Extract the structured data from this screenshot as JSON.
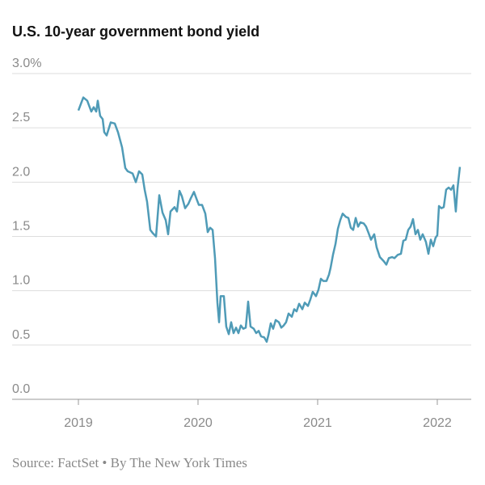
{
  "chart_data": {
    "type": "line",
    "title": "U.S. 10-year government bond yield",
    "source": "Source: FactSet • By The New York Times",
    "color": "#4f9bb7",
    "grid": true,
    "xlim": [
      2018.446,
      2022.284
    ],
    "xticks": [
      2019,
      2020,
      2021,
      2022
    ],
    "ylim": [
      0,
      3
    ],
    "yticks": [
      {
        "value": 0,
        "label": "0.0"
      },
      0.5,
      {
        "value": 1,
        "label": "1.0"
      },
      1.5,
      {
        "value": 2,
        "label": "2.0"
      },
      2.5,
      {
        "value": 3,
        "label": "3.0%"
      }
    ],
    "x": [
      2019.0,
      2019.041,
      2019.074,
      2019.108,
      2019.128,
      2019.149,
      2019.162,
      2019.182,
      2019.203,
      2019.216,
      2019.236,
      2019.27,
      2019.304,
      2019.331,
      2019.365,
      2019.392,
      2019.412,
      2019.453,
      2019.48,
      2019.507,
      2019.534,
      2019.554,
      2019.574,
      2019.601,
      2019.622,
      2019.649,
      2019.676,
      2019.703,
      2019.73,
      2019.75,
      2019.77,
      2019.804,
      2019.824,
      2019.845,
      2019.865,
      2019.892,
      2019.919,
      2019.939,
      2019.966,
      2019.986,
      2020.007,
      2020.034,
      2020.061,
      2020.081,
      2020.101,
      2020.122,
      2020.142,
      2020.162,
      2020.176,
      2020.189,
      2020.216,
      2020.236,
      2020.257,
      2020.277,
      2020.297,
      2020.318,
      2020.338,
      2020.358,
      2020.378,
      2020.399,
      2020.419,
      2020.439,
      2020.466,
      2020.486,
      2020.507,
      2020.527,
      2020.554,
      2020.574,
      2020.588,
      2020.608,
      2020.628,
      2020.649,
      2020.676,
      2020.696,
      2020.716,
      2020.736,
      2020.757,
      2020.784,
      2020.804,
      2020.824,
      2020.845,
      2020.872,
      2020.892,
      2020.919,
      2020.939,
      2020.959,
      2020.986,
      2021.007,
      2021.027,
      2021.047,
      2021.074,
      2021.095,
      2021.108,
      2021.128,
      2021.149,
      2021.169,
      2021.189,
      2021.209,
      2021.236,
      2021.257,
      2021.277,
      2021.297,
      2021.318,
      2021.338,
      2021.358,
      2021.385,
      2021.405,
      2021.426,
      2021.446,
      2021.473,
      2021.493,
      2021.52,
      2021.554,
      2021.574,
      2021.595,
      2021.622,
      2021.642,
      2021.669,
      2021.696,
      2021.716,
      2021.736,
      2021.757,
      2021.777,
      2021.797,
      2021.818,
      2021.838,
      2021.858,
      2021.878,
      2021.905,
      2021.926,
      2021.946,
      2021.966,
      2021.986,
      2022.0,
      2022.014,
      2022.034,
      2022.054,
      2022.074,
      2022.095,
      2022.115,
      2022.135,
      2022.155,
      2022.169,
      2022.189
    ],
    "values": [
      2.66,
      2.78,
      2.75,
      2.65,
      2.69,
      2.65,
      2.75,
      2.61,
      2.58,
      2.46,
      2.43,
      2.55,
      2.54,
      2.46,
      2.32,
      2.13,
      2.1,
      2.08,
      2.0,
      2.1,
      2.07,
      1.93,
      1.82,
      1.56,
      1.53,
      1.5,
      1.88,
      1.72,
      1.65,
      1.52,
      1.73,
      1.77,
      1.73,
      1.92,
      1.87,
      1.76,
      1.8,
      1.85,
      1.91,
      1.85,
      1.79,
      1.79,
      1.71,
      1.54,
      1.58,
      1.56,
      1.3,
      0.89,
      0.71,
      0.95,
      0.95,
      0.67,
      0.6,
      0.71,
      0.61,
      0.66,
      0.61,
      0.68,
      0.65,
      0.66,
      0.9,
      0.67,
      0.65,
      0.61,
      0.63,
      0.58,
      0.57,
      0.53,
      0.59,
      0.7,
      0.65,
      0.73,
      0.71,
      0.66,
      0.68,
      0.71,
      0.79,
      0.76,
      0.83,
      0.81,
      0.88,
      0.83,
      0.89,
      0.86,
      0.92,
      0.99,
      0.95,
      1.01,
      1.11,
      1.09,
      1.09,
      1.15,
      1.21,
      1.33,
      1.43,
      1.57,
      1.65,
      1.71,
      1.68,
      1.67,
      1.58,
      1.56,
      1.67,
      1.59,
      1.63,
      1.62,
      1.59,
      1.53,
      1.47,
      1.52,
      1.4,
      1.31,
      1.27,
      1.24,
      1.3,
      1.31,
      1.3,
      1.33,
      1.34,
      1.46,
      1.47,
      1.56,
      1.59,
      1.66,
      1.52,
      1.56,
      1.47,
      1.52,
      1.45,
      1.34,
      1.47,
      1.41,
      1.49,
      1.51,
      1.78,
      1.76,
      1.77,
      1.93,
      1.95,
      1.93,
      1.97,
      1.73,
      1.94,
      2.14
    ]
  }
}
